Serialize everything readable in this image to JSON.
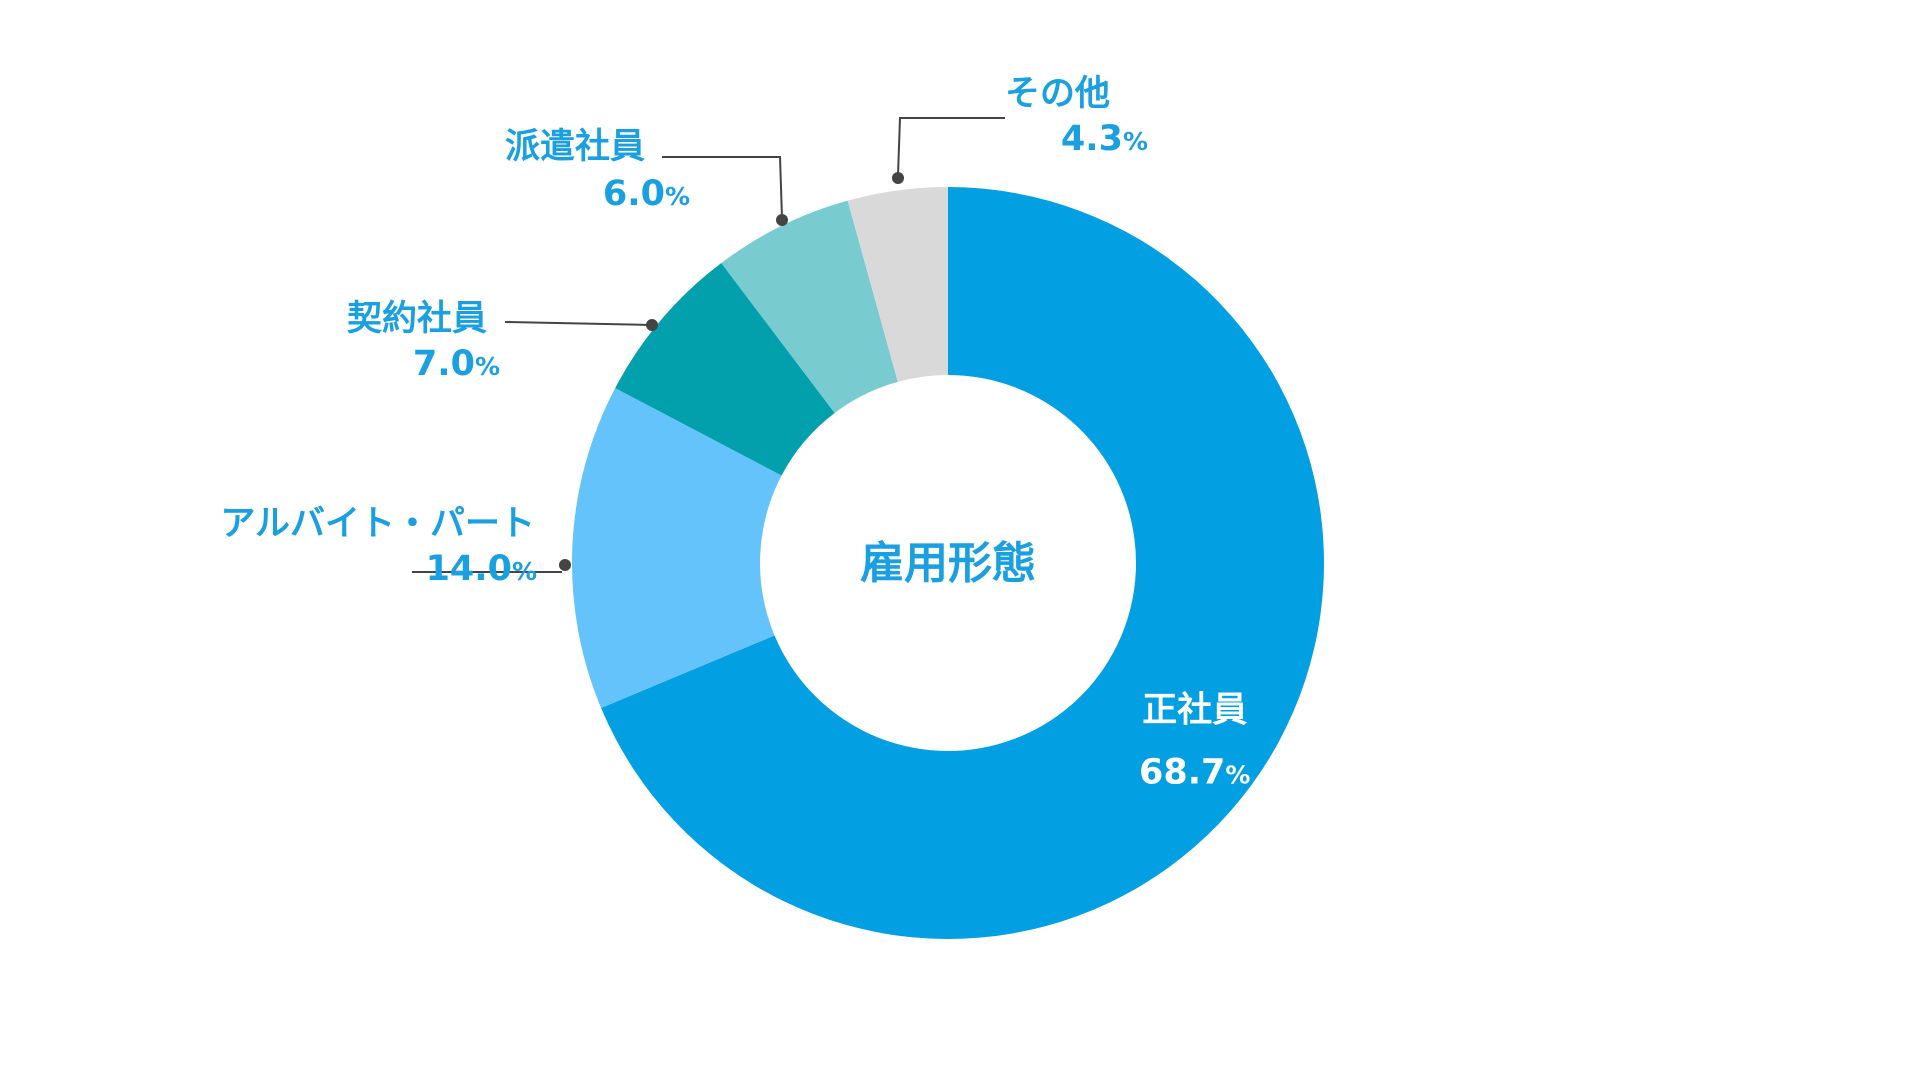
{
  "chart_data": {
    "type": "pie",
    "variant": "donut",
    "center_label": "雇用形態",
    "unit": "%",
    "slices": [
      {
        "name": "正社員",
        "value": 68.7,
        "value_text": "68.7",
        "color": "#039fe3",
        "label_color": "#ffffff",
        "label_placement": "inside"
      },
      {
        "name": "アルバイト・パート",
        "value": 14.0,
        "value_text": "14.0",
        "color": "#64c3fb",
        "label_color": "#1aa0e0",
        "label_placement": "outside"
      },
      {
        "name": "契約社員",
        "value": 7.0,
        "value_text": "7.0",
        "color": "#01a0ac",
        "label_color": "#1aa0e0",
        "label_placement": "outside"
      },
      {
        "name": "派遣社員",
        "value": 6.0,
        "value_text": "6.0",
        "color": "#78cbcf",
        "label_color": "#1aa0e0",
        "label_placement": "outside"
      },
      {
        "name": "その他",
        "value": 4.3,
        "value_text": "4.3",
        "color": "#d9d9d9",
        "label_color": "#1aa0e0",
        "label_placement": "outside"
      }
    ],
    "leader_line_color": "#444444",
    "center_label_color": "#1aa0e0"
  }
}
